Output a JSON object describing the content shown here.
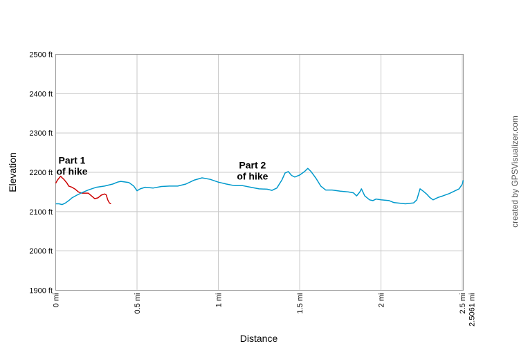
{
  "chart_data": {
    "type": "line",
    "xlabel": "Distance",
    "ylabel": "Elevation",
    "xlim": [
      0,
      2.5061
    ],
    "ylim": [
      1900,
      2500
    ],
    "grid": true,
    "y_ticks": [
      {
        "value": 1900,
        "label": "1900 ft"
      },
      {
        "value": 2000,
        "label": "2000 ft"
      },
      {
        "value": 2100,
        "label": "2100 ft"
      },
      {
        "value": 2200,
        "label": "2200 ft"
      },
      {
        "value": 2300,
        "label": "2300 ft"
      },
      {
        "value": 2400,
        "label": "2400 ft"
      },
      {
        "value": 2500,
        "label": "2500 ft"
      }
    ],
    "x_ticks": [
      {
        "value": 0,
        "label": "0 mi"
      },
      {
        "value": 0.5,
        "label": "0.5 mi"
      },
      {
        "value": 1,
        "label": "1 mi"
      },
      {
        "value": 1.5,
        "label": "1.5 mi"
      },
      {
        "value": 2,
        "label": "2 mi"
      },
      {
        "value": 2.5,
        "label": "2.5 mi"
      }
    ],
    "x_end_label": "2.5061 mi",
    "series": [
      {
        "color": "#cc0000",
        "points": [
          [
            0,
            2172
          ],
          [
            0.01,
            2180
          ],
          [
            0.02,
            2185
          ],
          [
            0.03,
            2190
          ],
          [
            0.04,
            2186
          ],
          [
            0.05,
            2182
          ],
          [
            0.07,
            2172
          ],
          [
            0.08,
            2165
          ],
          [
            0.1,
            2162
          ],
          [
            0.12,
            2157
          ],
          [
            0.14,
            2150
          ],
          [
            0.16,
            2147
          ],
          [
            0.18,
            2147
          ],
          [
            0.2,
            2147
          ],
          [
            0.22,
            2140
          ],
          [
            0.24,
            2133
          ],
          [
            0.26,
            2135
          ],
          [
            0.28,
            2142
          ],
          [
            0.3,
            2145
          ],
          [
            0.31,
            2143
          ],
          [
            0.32,
            2130
          ],
          [
            0.33,
            2122
          ],
          [
            0.34,
            2120
          ]
        ]
      },
      {
        "color": "#0099cc",
        "points": [
          [
            0,
            2120
          ],
          [
            0.02,
            2120
          ],
          [
            0.04,
            2118
          ],
          [
            0.06,
            2122
          ],
          [
            0.08,
            2128
          ],
          [
            0.1,
            2135
          ],
          [
            0.13,
            2142
          ],
          [
            0.16,
            2148
          ],
          [
            0.2,
            2155
          ],
          [
            0.25,
            2162
          ],
          [
            0.3,
            2165
          ],
          [
            0.35,
            2170
          ],
          [
            0.38,
            2175
          ],
          [
            0.4,
            2177
          ],
          [
            0.45,
            2174
          ],
          [
            0.48,
            2165
          ],
          [
            0.5,
            2153
          ],
          [
            0.52,
            2158
          ],
          [
            0.55,
            2162
          ],
          [
            0.6,
            2160
          ],
          [
            0.65,
            2164
          ],
          [
            0.7,
            2165
          ],
          [
            0.75,
            2165
          ],
          [
            0.8,
            2170
          ],
          [
            0.85,
            2180
          ],
          [
            0.9,
            2186
          ],
          [
            0.95,
            2182
          ],
          [
            1,
            2175
          ],
          [
            1.05,
            2170
          ],
          [
            1.1,
            2166
          ],
          [
            1.15,
            2166
          ],
          [
            1.2,
            2162
          ],
          [
            1.25,
            2158
          ],
          [
            1.3,
            2157
          ],
          [
            1.33,
            2154
          ],
          [
            1.36,
            2160
          ],
          [
            1.39,
            2180
          ],
          [
            1.41,
            2198
          ],
          [
            1.43,
            2202
          ],
          [
            1.45,
            2192
          ],
          [
            1.47,
            2188
          ],
          [
            1.5,
            2193
          ],
          [
            1.53,
            2202
          ],
          [
            1.55,
            2210
          ],
          [
            1.57,
            2202
          ],
          [
            1.6,
            2185
          ],
          [
            1.63,
            2165
          ],
          [
            1.66,
            2155
          ],
          [
            1.7,
            2155
          ],
          [
            1.75,
            2152
          ],
          [
            1.8,
            2150
          ],
          [
            1.83,
            2148
          ],
          [
            1.85,
            2140
          ],
          [
            1.87,
            2150
          ],
          [
            1.88,
            2158
          ],
          [
            1.9,
            2140
          ],
          [
            1.93,
            2130
          ],
          [
            1.95,
            2128
          ],
          [
            1.97,
            2132
          ],
          [
            2,
            2130
          ],
          [
            2.05,
            2128
          ],
          [
            2.08,
            2123
          ],
          [
            2.1,
            2122
          ],
          [
            2.15,
            2120
          ],
          [
            2.2,
            2122
          ],
          [
            2.22,
            2130
          ],
          [
            2.24,
            2158
          ],
          [
            2.26,
            2152
          ],
          [
            2.28,
            2145
          ],
          [
            2.3,
            2136
          ],
          [
            2.32,
            2130
          ],
          [
            2.35,
            2136
          ],
          [
            2.38,
            2140
          ],
          [
            2.42,
            2146
          ],
          [
            2.45,
            2152
          ],
          [
            2.48,
            2158
          ],
          [
            2.5,
            2170
          ],
          [
            2.5061,
            2180
          ]
        ]
      }
    ],
    "annotations": [
      {
        "line1": "Part 1",
        "line2": "of hike",
        "x": 0.1,
        "y": 2222
      },
      {
        "line1": "Part 2",
        "line2": "of hike",
        "x": 1.21,
        "y": 2210
      }
    ],
    "credit": "created by GPSVisualizer.com"
  }
}
